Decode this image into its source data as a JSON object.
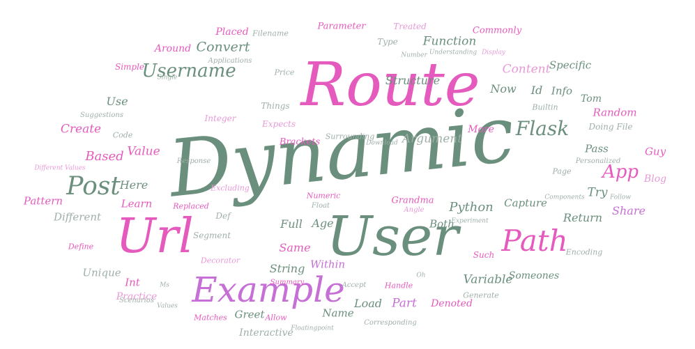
{
  "words": [
    "Dynamic",
    "Route",
    "User",
    "Url",
    "Example",
    "Path",
    "Post",
    "Username",
    "Flask",
    "App",
    "Convert",
    "Function",
    "Content",
    "Structure",
    "Python",
    "Argument",
    "Variable",
    "Based",
    "Value",
    "Create",
    "Use",
    "Here",
    "Learn",
    "Pattern",
    "Different",
    "Full",
    "Same",
    "String",
    "Within",
    "Part",
    "Load",
    "Name",
    "Greet",
    "Interactive",
    "Unique",
    "Int",
    "Practice",
    "Denoted",
    "Someones",
    "Return",
    "Share",
    "Try",
    "Capture",
    "Both",
    "Pass",
    "Random",
    "Guy",
    "Blog",
    "Tom",
    "Info",
    "Id",
    "Now",
    "Specific",
    "Commonly",
    "Placed",
    "Filename",
    "Parameter",
    "Treated",
    "Type",
    "Around",
    "Applications",
    "Simple",
    "Price",
    "Integer",
    "Things",
    "Expects",
    "More",
    "Builtin",
    "Doing File",
    "Page",
    "Personalized",
    "Brackets",
    "Surrounding",
    "Download",
    "Code",
    "Suggestions",
    "Response",
    "Excluding",
    "Replaced",
    "Def",
    "Segment",
    "Numeric",
    "Float",
    "Grandma",
    "Angle",
    "Experiment",
    "Such",
    "Encoding",
    "Decorator",
    "Summary",
    "Accept",
    "Handle",
    "Generate",
    "Corresponding",
    "Floatingpoint",
    "Matches",
    "Allow",
    "Scenarios",
    "Values",
    "Define",
    "Understanding",
    "Display",
    "Number",
    "Single",
    "Different Values",
    "Components",
    "Follow",
    "Age",
    "Ms",
    "Oh"
  ]
}
